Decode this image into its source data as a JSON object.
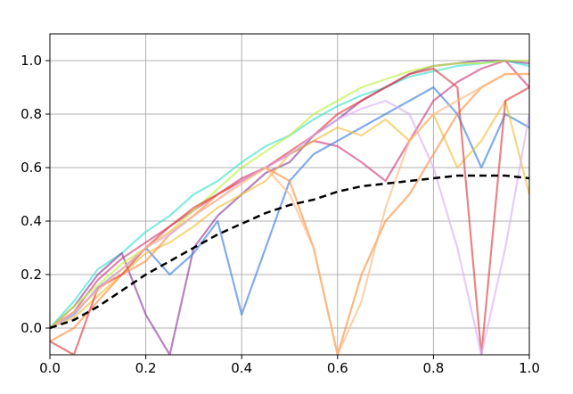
{
  "chart_data": {
    "type": "line",
    "x": [
      0,
      0.05,
      0.1,
      0.15,
      0.2,
      0.25,
      0.3,
      0.35,
      0.4,
      0.45,
      0.5,
      0.55,
      0.6,
      0.65,
      0.7,
      0.75,
      0.8,
      0.85,
      0.9,
      0.95,
      1.0
    ],
    "series": [
      {
        "color": "#40e0d0",
        "values": [
          0,
          0.1,
          0.22,
          0.28,
          0.36,
          0.42,
          0.5,
          0.55,
          0.62,
          0.68,
          0.72,
          0.78,
          0.83,
          0.87,
          0.9,
          0.94,
          0.96,
          0.98,
          0.99,
          1.0,
          0.98
        ]
      },
      {
        "color": "#d04080",
        "values": [
          0,
          0.06,
          0.18,
          0.26,
          0.32,
          0.38,
          0.44,
          0.5,
          0.56,
          0.6,
          0.65,
          0.7,
          0.68,
          0.62,
          0.55,
          0.7,
          0.85,
          0.92,
          0.97,
          1.0,
          0.9
        ]
      },
      {
        "color": "#9040a0",
        "values": [
          0,
          0.08,
          0.2,
          0.28,
          0.05,
          -0.1,
          0.3,
          0.42,
          0.5,
          0.58,
          0.62,
          0.72,
          0.78,
          0.85,
          0.9,
          0.95,
          0.98,
          0.99,
          1.0,
          1.0,
          0.99
        ]
      },
      {
        "color": "#4080e0",
        "values": [
          0,
          0.05,
          0.15,
          0.22,
          0.3,
          0.2,
          0.28,
          0.4,
          0.05,
          0.3,
          0.55,
          0.65,
          0.7,
          0.75,
          0.8,
          0.85,
          0.9,
          0.8,
          0.6,
          0.8,
          0.75
        ]
      },
      {
        "color": "#f0c040",
        "values": [
          0,
          0.04,
          0.12,
          0.2,
          0.28,
          0.32,
          0.38,
          0.45,
          0.5,
          0.55,
          0.65,
          0.7,
          0.75,
          0.72,
          0.78,
          0.7,
          0.8,
          0.6,
          0.7,
          0.85,
          0.5
        ]
      },
      {
        "color": "#ff9040",
        "values": [
          -0.05,
          0,
          0.1,
          0.2,
          0.25,
          0.35,
          0.42,
          0.5,
          0.55,
          0.6,
          0.55,
          0.3,
          -0.1,
          0.2,
          0.4,
          0.5,
          0.65,
          0.8,
          0.9,
          0.95,
          0.95
        ]
      },
      {
        "color": "#c0f040",
        "values": [
          0,
          0.08,
          0.16,
          0.24,
          0.3,
          0.36,
          0.44,
          0.52,
          0.6,
          0.66,
          0.72,
          0.8,
          0.85,
          0.9,
          0.93,
          0.96,
          0.98,
          0.99,
          0.99,
          1.0,
          1.0
        ]
      },
      {
        "color": "#e04040",
        "values": [
          -0.05,
          -0.1,
          0.15,
          0.2,
          0.3,
          0.38,
          0.45,
          0.5,
          0.55,
          0.6,
          0.66,
          0.72,
          0.8,
          0.85,
          0.9,
          0.95,
          0.97,
          0.9,
          -0.1,
          0.85,
          0.9
        ]
      },
      {
        "color": "#d8b0f8",
        "values": [
          0,
          0.05,
          0.15,
          0.22,
          0.3,
          0.35,
          0.42,
          0.48,
          0.55,
          0.6,
          0.65,
          0.72,
          0.78,
          0.82,
          0.85,
          0.8,
          0.6,
          0.3,
          -0.1,
          0.3,
          0.8
        ]
      },
      {
        "color": "#ffb880",
        "values": [
          0,
          0.06,
          0.14,
          0.22,
          0.3,
          0.36,
          0.42,
          0.48,
          0.54,
          0.6,
          0.5,
          0.3,
          -0.1,
          0.1,
          0.45,
          0.7,
          0.8,
          0.85,
          0.9,
          0.95,
          0.95
        ]
      },
      {
        "color": "#000000",
        "dashed": true,
        "values": [
          0,
          0.03,
          0.08,
          0.14,
          0.2,
          0.25,
          0.3,
          0.35,
          0.39,
          0.43,
          0.46,
          0.48,
          0.51,
          0.53,
          0.54,
          0.55,
          0.56,
          0.57,
          0.57,
          0.57,
          0.56
        ]
      }
    ],
    "xlim": [
      0,
      1.0
    ],
    "ylim": [
      -0.1,
      1.1
    ],
    "xticks": [
      {
        "value": 0,
        "label": "0.0"
      },
      {
        "value": 0.2,
        "label": "0.2"
      },
      {
        "value": 0.4,
        "label": "0.4"
      },
      {
        "value": 0.6,
        "label": "0.6"
      },
      {
        "value": 0.8,
        "label": "0.8"
      },
      {
        "value": 1.0,
        "label": "1.0"
      }
    ],
    "yticks": [
      {
        "value": 0,
        "label": "0.0"
      },
      {
        "value": 0.2,
        "label": "0.2"
      },
      {
        "value": 0.4,
        "label": "0.4"
      },
      {
        "value": 0.6,
        "label": "0.6"
      },
      {
        "value": 0.8,
        "label": "0.8"
      },
      {
        "value": 1.0,
        "label": "1.0"
      }
    ],
    "grid": true
  }
}
